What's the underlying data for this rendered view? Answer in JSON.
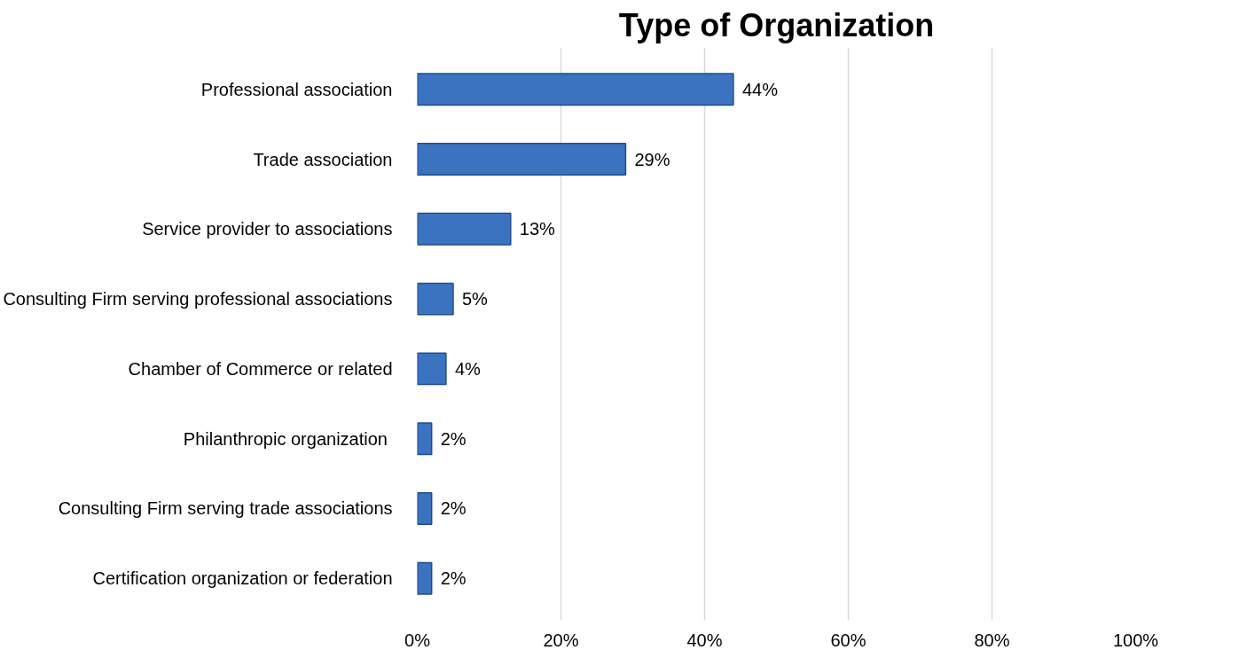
{
  "chart_data": {
    "type": "bar",
    "orientation": "horizontal",
    "title": "Type of Organization",
    "categories": [
      "Professional association",
      "Trade association",
      "Service provider to associations",
      "Consulting Firm serving professional associations",
      "Chamber of Commerce or related",
      "Philanthropic  organization",
      "Consulting Firm serving trade associations",
      "Certification organization or federation"
    ],
    "values": [
      44,
      29,
      13,
      5,
      4,
      2,
      2,
      2
    ],
    "value_labels": [
      "44%",
      "29%",
      "13%",
      "5%",
      "4%",
      "2%",
      "2%",
      "2%"
    ],
    "color": "#3b73c0",
    "xlim": [
      0,
      100
    ],
    "xticks": [
      {
        "value": 0,
        "label": "0%"
      },
      {
        "value": 20,
        "label": "20%"
      },
      {
        "value": 40,
        "label": "40%"
      },
      {
        "value": 60,
        "label": "60%"
      },
      {
        "value": 80,
        "label": "80%"
      },
      {
        "value": 100,
        "label": "100%"
      }
    ],
    "grid": "x"
  }
}
